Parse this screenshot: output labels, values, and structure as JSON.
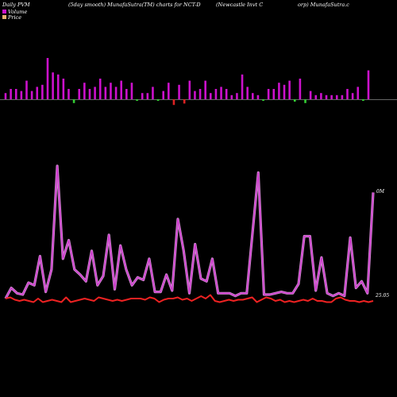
{
  "header": {
    "left": "Daily PVM",
    "center": "(5day smooth) MunafaSutra(TM) charts for NCT-D",
    "right_a": "(Newcastle   Invt C",
    "right_b": "orp) MunafaSutra.c"
  },
  "legend": {
    "volume_label": "Volume",
    "price_label": "Price"
  },
  "colors": {
    "background": "#000000",
    "volume_up": "#cc11cc",
    "volume_down_green": "#33cc33",
    "volume_down_red": "#dd2222",
    "pvm_line": "#cc33cc",
    "price_line": "#ee2222",
    "baseline": "#cccccc"
  },
  "chart_data": [
    {
      "type": "bar",
      "title": "Volume",
      "values": [
        3,
        5,
        5,
        4,
        9,
        4,
        6,
        7,
        20,
        13,
        12,
        10,
        5,
        8,
        5,
        8,
        5,
        6,
        10,
        6,
        8,
        6,
        9,
        5,
        8,
        3,
        3,
        3,
        6,
        2,
        4,
        8,
        12,
        7,
        9,
        9,
        4,
        5,
        9,
        3,
        5,
        6,
        5,
        2,
        3,
        12,
        6,
        3,
        2,
        3,
        5,
        5,
        8,
        7,
        9,
        5,
        10,
        8,
        4,
        2,
        3,
        2,
        2,
        2,
        2,
        5,
        3,
        6,
        2,
        14
      ],
      "colors": [
        "m",
        "m",
        "m",
        "m",
        "m",
        "m",
        "m",
        "m",
        "m",
        "m",
        "m",
        "m",
        "m",
        "g",
        "m",
        "m",
        "m",
        "m",
        "m",
        "m",
        "m",
        "m",
        "m",
        "m",
        "m",
        "g",
        "m",
        "m",
        "m",
        "g",
        "m",
        "m",
        "r",
        "m",
        "r",
        "m",
        "m",
        "m",
        "m",
        "m",
        "m",
        "m",
        "m",
        "m",
        "m",
        "m",
        "m",
        "m",
        "m",
        "g",
        "m",
        "m",
        "m",
        "m",
        "m",
        "g",
        "m",
        "g",
        "m",
        "m",
        "m",
        "m",
        "m",
        "m",
        "m",
        "m",
        "m",
        "m",
        "g",
        "m"
      ]
    },
    {
      "type": "line",
      "title": "PVM",
      "axis_label": "0M",
      "values": [
        0,
        0.08,
        0.04,
        0.03,
        0.12,
        0.1,
        0.32,
        0.05,
        0.22,
        1.0,
        0.3,
        0.44,
        0.22,
        0.18,
        0.13,
        0.36,
        0.1,
        0.17,
        0.48,
        0.07,
        0.4,
        0.22,
        0.1,
        0.16,
        0.14,
        0.3,
        0.05,
        0.05,
        0.18,
        0.06,
        0.6,
        0.36,
        0.04,
        0.41,
        0.15,
        0.13,
        0.3,
        0.04,
        0.04,
        0.04,
        0.02,
        0.04,
        0.04,
        0.5,
        0.95,
        0.03,
        0.03,
        0.04,
        0.05,
        0.04,
        0.04,
        0.11,
        0.47,
        0.47,
        0.06,
        0.31,
        0.04,
        0.02,
        0.04,
        0.02,
        0.46,
        0.08,
        0.13,
        0.04,
        0.8
      ]
    },
    {
      "type": "line",
      "title": "Price",
      "axis_label": "25.05",
      "values": [
        25.3,
        25.4,
        25.2,
        25.1,
        25.2,
        25.1,
        25.0,
        25.3,
        25.0,
        25.1,
        25.2,
        25.1,
        25.0,
        25.4,
        25.0,
        25.1,
        25.2,
        25.3,
        25.2,
        25.1,
        25.4,
        25.3,
        25.2,
        25.1,
        25.2,
        25.1,
        25.2,
        25.3,
        25.3,
        25.3,
        25.2,
        25.4,
        25.3,
        25.0,
        25.2,
        25.3,
        25.3,
        25.4,
        25.2,
        25.3,
        25.1,
        25.3,
        25.5,
        25.3,
        25.6,
        25.1,
        25.0,
        25.1,
        25.2,
        25.1,
        25.2,
        25.2,
        25.3,
        25.4,
        25.0,
        25.2,
        25.4,
        25.3,
        25.1,
        25.2,
        25.0,
        25.1,
        25.0,
        25.1,
        25.2,
        25.1,
        25.3,
        25.1,
        25.1,
        25.0,
        25.0,
        25.3,
        25.4,
        25.2,
        25.1,
        25.1,
        25.0,
        25.1,
        25.0,
        25.1
      ]
    }
  ]
}
